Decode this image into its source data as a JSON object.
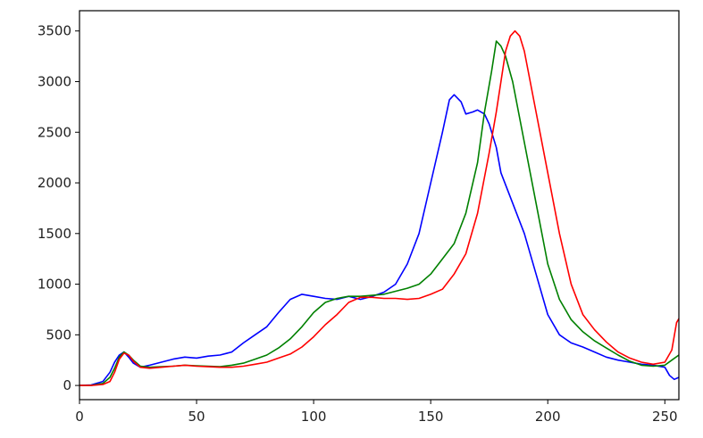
{
  "chart_data": {
    "type": "line",
    "title": "",
    "xlabel": "",
    "ylabel": "",
    "xlim": [
      0,
      256
    ],
    "ylim": [
      -140,
      3700
    ],
    "grid": false,
    "x_ticks": [
      0,
      50,
      100,
      150,
      200,
      250
    ],
    "y_ticks": [
      0,
      500,
      1000,
      1500,
      2000,
      2500,
      3000,
      3500
    ],
    "series": [
      {
        "color": "#0000ff",
        "points": [
          [
            0,
            0
          ],
          [
            5,
            5
          ],
          [
            10,
            40
          ],
          [
            13,
            130
          ],
          [
            15,
            230
          ],
          [
            17,
            300
          ],
          [
            19,
            330
          ],
          [
            21,
            280
          ],
          [
            23,
            220
          ],
          [
            26,
            180
          ],
          [
            30,
            200
          ],
          [
            35,
            230
          ],
          [
            40,
            260
          ],
          [
            45,
            280
          ],
          [
            50,
            270
          ],
          [
            55,
            290
          ],
          [
            60,
            300
          ],
          [
            65,
            330
          ],
          [
            70,
            420
          ],
          [
            75,
            500
          ],
          [
            80,
            580
          ],
          [
            85,
            720
          ],
          [
            90,
            850
          ],
          [
            95,
            900
          ],
          [
            100,
            880
          ],
          [
            105,
            860
          ],
          [
            110,
            850
          ],
          [
            115,
            880
          ],
          [
            120,
            850
          ],
          [
            125,
            880
          ],
          [
            130,
            920
          ],
          [
            135,
            1000
          ],
          [
            140,
            1200
          ],
          [
            145,
            1500
          ],
          [
            150,
            2000
          ],
          [
            155,
            2500
          ],
          [
            158,
            2820
          ],
          [
            160,
            2870
          ],
          [
            163,
            2800
          ],
          [
            165,
            2680
          ],
          [
            168,
            2700
          ],
          [
            170,
            2720
          ],
          [
            173,
            2680
          ],
          [
            175,
            2580
          ],
          [
            178,
            2350
          ],
          [
            180,
            2100
          ],
          [
            185,
            1800
          ],
          [
            190,
            1500
          ],
          [
            195,
            1100
          ],
          [
            200,
            700
          ],
          [
            205,
            500
          ],
          [
            210,
            420
          ],
          [
            215,
            380
          ],
          [
            220,
            330
          ],
          [
            225,
            280
          ],
          [
            230,
            250
          ],
          [
            235,
            230
          ],
          [
            240,
            210
          ],
          [
            245,
            200
          ],
          [
            250,
            180
          ],
          [
            252,
            100
          ],
          [
            254,
            60
          ],
          [
            256,
            80
          ]
        ]
      },
      {
        "color": "#008000",
        "points": [
          [
            0,
            0
          ],
          [
            5,
            0
          ],
          [
            10,
            20
          ],
          [
            13,
            80
          ],
          [
            15,
            170
          ],
          [
            17,
            280
          ],
          [
            19,
            330
          ],
          [
            21,
            300
          ],
          [
            23,
            250
          ],
          [
            26,
            190
          ],
          [
            30,
            180
          ],
          [
            35,
            185
          ],
          [
            40,
            190
          ],
          [
            45,
            200
          ],
          [
            50,
            195
          ],
          [
            55,
            190
          ],
          [
            60,
            185
          ],
          [
            65,
            200
          ],
          [
            70,
            220
          ],
          [
            75,
            260
          ],
          [
            80,
            300
          ],
          [
            85,
            370
          ],
          [
            90,
            460
          ],
          [
            95,
            580
          ],
          [
            100,
            720
          ],
          [
            105,
            820
          ],
          [
            110,
            860
          ],
          [
            115,
            880
          ],
          [
            120,
            880
          ],
          [
            125,
            890
          ],
          [
            130,
            900
          ],
          [
            135,
            930
          ],
          [
            140,
            960
          ],
          [
            145,
            1000
          ],
          [
            150,
            1100
          ],
          [
            155,
            1250
          ],
          [
            160,
            1400
          ],
          [
            165,
            1700
          ],
          [
            170,
            2200
          ],
          [
            173,
            2700
          ],
          [
            176,
            3100
          ],
          [
            178,
            3400
          ],
          [
            180,
            3350
          ],
          [
            182,
            3250
          ],
          [
            185,
            3000
          ],
          [
            190,
            2400
          ],
          [
            195,
            1800
          ],
          [
            200,
            1200
          ],
          [
            205,
            850
          ],
          [
            210,
            650
          ],
          [
            215,
            530
          ],
          [
            220,
            440
          ],
          [
            225,
            370
          ],
          [
            230,
            300
          ],
          [
            235,
            240
          ],
          [
            240,
            200
          ],
          [
            245,
            190
          ],
          [
            250,
            200
          ],
          [
            253,
            250
          ],
          [
            256,
            300
          ]
        ]
      },
      {
        "color": "#ff0000",
        "points": [
          [
            0,
            0
          ],
          [
            5,
            0
          ],
          [
            10,
            10
          ],
          [
            13,
            40
          ],
          [
            15,
            130
          ],
          [
            17,
            260
          ],
          [
            19,
            320
          ],
          [
            21,
            300
          ],
          [
            23,
            240
          ],
          [
            26,
            180
          ],
          [
            30,
            170
          ],
          [
            35,
            180
          ],
          [
            40,
            190
          ],
          [
            45,
            200
          ],
          [
            50,
            190
          ],
          [
            55,
            185
          ],
          [
            60,
            180
          ],
          [
            65,
            180
          ],
          [
            70,
            190
          ],
          [
            75,
            210
          ],
          [
            80,
            230
          ],
          [
            85,
            270
          ],
          [
            90,
            310
          ],
          [
            95,
            380
          ],
          [
            100,
            480
          ],
          [
            105,
            600
          ],
          [
            110,
            700
          ],
          [
            115,
            820
          ],
          [
            120,
            870
          ],
          [
            125,
            870
          ],
          [
            130,
            860
          ],
          [
            135,
            860
          ],
          [
            140,
            850
          ],
          [
            145,
            860
          ],
          [
            150,
            900
          ],
          [
            155,
            950
          ],
          [
            160,
            1100
          ],
          [
            165,
            1300
          ],
          [
            170,
            1700
          ],
          [
            175,
            2300
          ],
          [
            178,
            2700
          ],
          [
            180,
            3000
          ],
          [
            182,
            3300
          ],
          [
            184,
            3450
          ],
          [
            186,
            3500
          ],
          [
            188,
            3450
          ],
          [
            190,
            3300
          ],
          [
            195,
            2700
          ],
          [
            200,
            2100
          ],
          [
            205,
            1500
          ],
          [
            210,
            1000
          ],
          [
            215,
            700
          ],
          [
            220,
            550
          ],
          [
            225,
            430
          ],
          [
            230,
            330
          ],
          [
            235,
            270
          ],
          [
            240,
            230
          ],
          [
            245,
            210
          ],
          [
            250,
            230
          ],
          [
            253,
            350
          ],
          [
            255,
            620
          ],
          [
            256,
            660
          ]
        ]
      }
    ]
  }
}
